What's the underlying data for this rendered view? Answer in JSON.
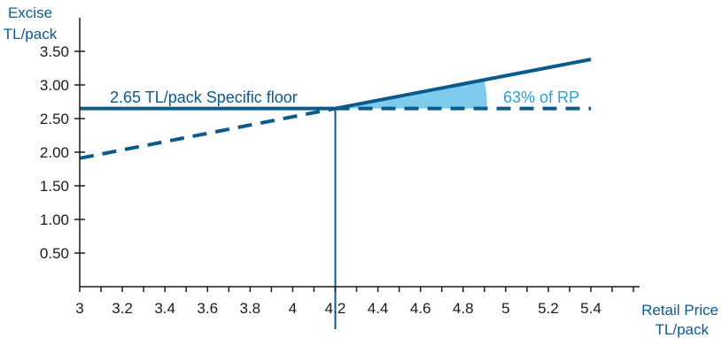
{
  "chart_data": {
    "type": "line",
    "xlabel": [
      "Retail Price",
      "TL/pack"
    ],
    "ylabel": [
      "Excise",
      "TL/pack"
    ],
    "xlim": [
      3,
      5.6
    ],
    "ylim": [
      0,
      3.75
    ],
    "x_ticks": [
      3,
      3.2,
      3.4,
      3.6,
      3.8,
      4,
      4.2,
      4.4,
      4.6,
      4.8,
      5,
      5.2,
      5.4
    ],
    "x_tick_labels": [
      "3",
      "3.2",
      "3.4",
      "3.6",
      "3.8",
      "4",
      "4.2",
      "4.4",
      "4.6",
      "4.8",
      "5",
      "5.2",
      "5.4"
    ],
    "y_ticks": [
      0.5,
      1.0,
      1.5,
      2.0,
      2.5,
      3.0,
      3.5
    ],
    "y_tick_labels": [
      "0.50",
      "1.00",
      "1.50",
      "2.00",
      "2.50",
      "3.00",
      "3.50"
    ],
    "series": [
      {
        "role": "specific-floor-solid",
        "style": "solid",
        "color": "#0a5a8e",
        "x": [
          3,
          4.2
        ],
        "y": [
          2.65,
          2.65
        ]
      },
      {
        "role": "specific-floor-dashed",
        "style": "dashed",
        "color": "#0a5a8e",
        "x": [
          4.2,
          5.4
        ],
        "y": [
          2.65,
          2.65
        ]
      },
      {
        "role": "ad-valorem-dashed",
        "style": "dashed",
        "color": "#0a5a8e",
        "x": [
          3,
          4.2
        ],
        "y": [
          1.91,
          2.65
        ]
      },
      {
        "role": "ad-valorem-solid",
        "style": "solid",
        "color": "#0a5a8e",
        "x": [
          4.2,
          5.4
        ],
        "y": [
          2.65,
          3.38
        ]
      }
    ],
    "vertical_line": {
      "x": 4.2,
      "color": "#0a5a8e"
    },
    "wedge": {
      "x_apex": 4.2,
      "y_apex": 2.65,
      "x_end": 4.9,
      "color": "#7ecbed"
    },
    "annotations": [
      {
        "text": "2.65 TL/pack Specific floor",
        "color": "#0a5a8e"
      },
      {
        "text": "63% of RP",
        "color": "#2a9fd8"
      }
    ],
    "grid": false
  }
}
